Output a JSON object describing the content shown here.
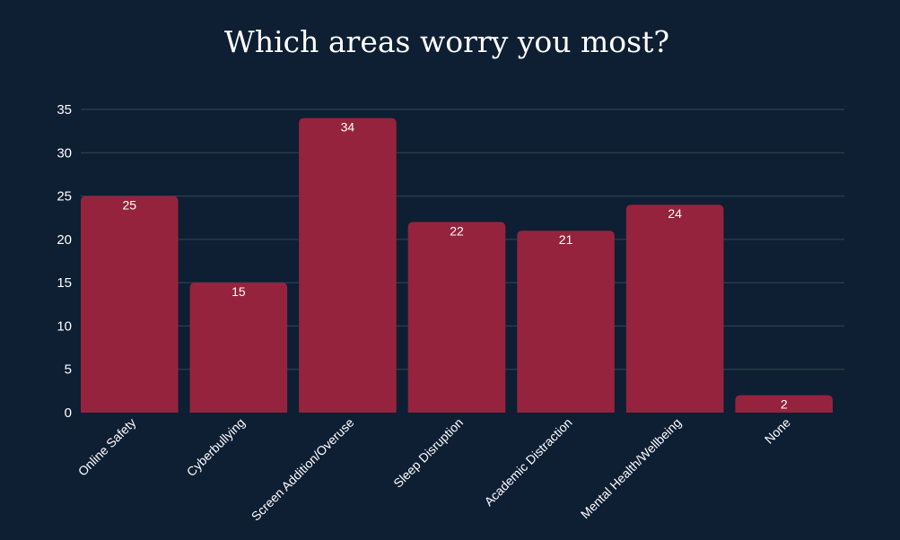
{
  "chart_data": {
    "type": "bar",
    "title": "Which areas worry you most?",
    "categories": [
      "Online Safety",
      "Cyberbullying",
      "Screen Addition/Overuse",
      "Sleep Disruption",
      "Academic Distraction",
      "Mental Health/Wellbeing",
      "None"
    ],
    "values": [
      25,
      15,
      34,
      22,
      21,
      24,
      2
    ],
    "y_ticks": [
      0,
      5,
      10,
      15,
      20,
      25,
      30,
      35
    ],
    "ylim": [
      0,
      35
    ],
    "xlabel": "",
    "ylabel": "",
    "grid": true,
    "legend": "none",
    "colors": {
      "background": "#0e1e33",
      "bar": "#96233d",
      "grid": "#2f4a52",
      "text": "#ffffff"
    }
  }
}
